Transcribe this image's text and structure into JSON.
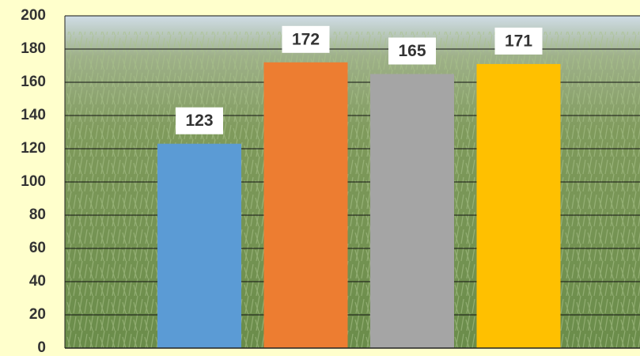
{
  "chart_data": {
    "type": "bar",
    "categories": [
      null,
      null,
      null,
      null
    ],
    "values": [
      123,
      172,
      165,
      171
    ],
    "colors": [
      "#5b9bd5",
      "#ed7d31",
      "#a5a5a5",
      "#ffc000"
    ],
    "ylim": [
      0,
      200
    ],
    "yticks": [
      0,
      20,
      40,
      60,
      80,
      100,
      120,
      140,
      160,
      180,
      200
    ],
    "grid": true
  }
}
